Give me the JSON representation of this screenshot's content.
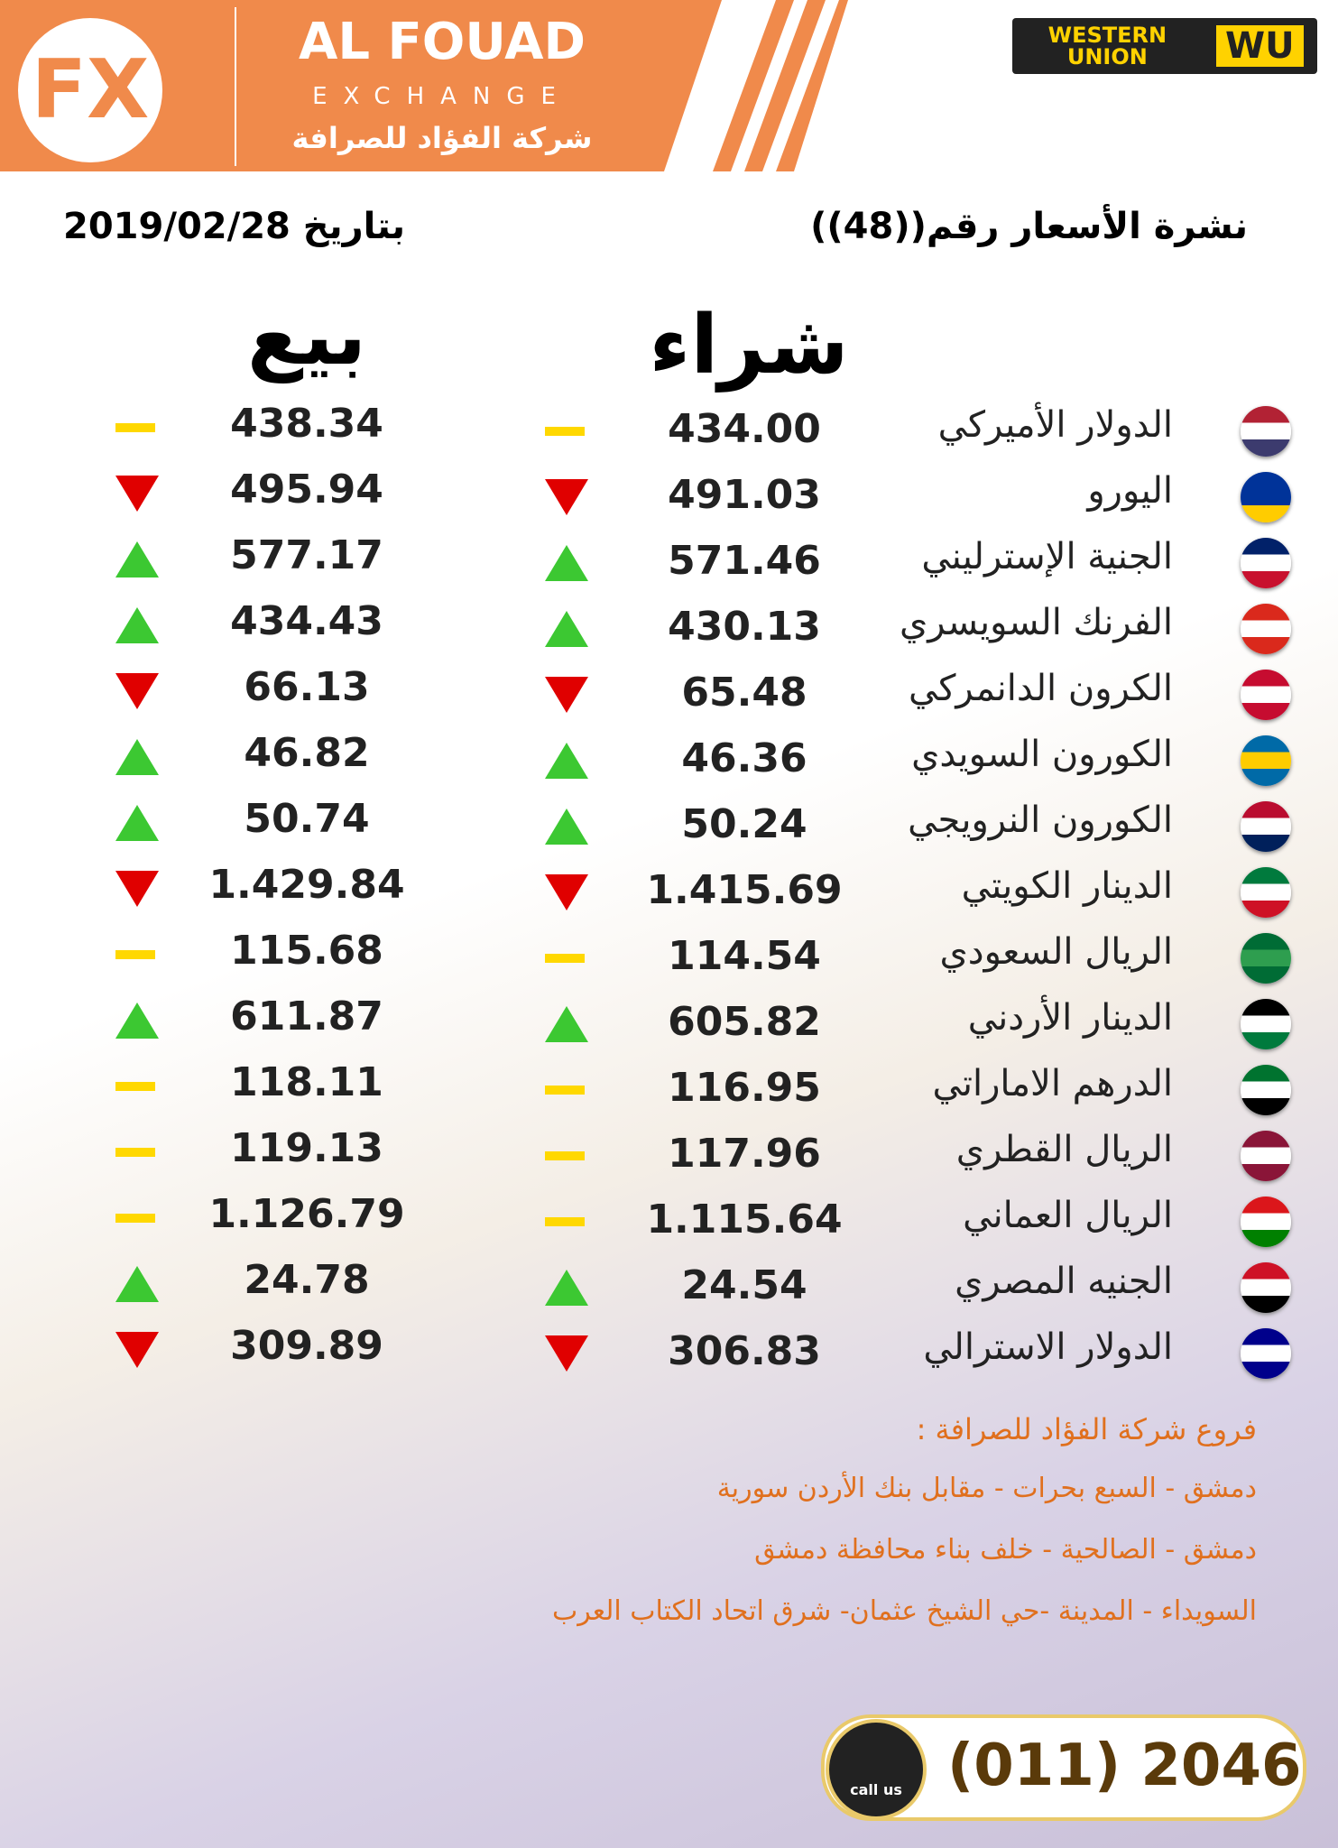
{
  "header": {
    "logo": "FX",
    "title": "AL FOUAD",
    "subtitle": "EXCHANGE",
    "arabic_name": "شركة الفؤاد للصرافة",
    "partner": "WESTERN UNION",
    "partner_mark": "WU"
  },
  "bulletin": {
    "number": "نشرة الأسعار رقم((48))",
    "date": "بتاريخ 2019/02/28"
  },
  "table": {
    "buy_header": "شراء",
    "sell_header": "بيع",
    "rows": [
      {
        "name": "الدولار الأميركي",
        "buy": "434.00",
        "sell": "438.34",
        "trend": "flat",
        "flag": [
          "#b22234",
          "#ffffff",
          "#3c3b6e"
        ]
      },
      {
        "name": "اليورو",
        "buy": "491.03",
        "sell": "495.94",
        "trend": "down",
        "flag": [
          "#003399",
          "#003399",
          "#ffcc00"
        ]
      },
      {
        "name": "الجنية الإسترليني",
        "buy": "571.46",
        "sell": "577.17",
        "trend": "up",
        "flag": [
          "#012169",
          "#ffffff",
          "#c8102e"
        ]
      },
      {
        "name": "الفرنك السويسري",
        "buy": "430.13",
        "sell": "434.43",
        "trend": "up",
        "flag": [
          "#da291c",
          "#ffffff",
          "#da291c"
        ]
      },
      {
        "name": "الكرون الدانمركي",
        "buy": "65.48",
        "sell": "66.13",
        "trend": "down",
        "flag": [
          "#c60c30",
          "#ffffff",
          "#c60c30"
        ]
      },
      {
        "name": "الكورون السويدي",
        "buy": "46.36",
        "sell": "46.82",
        "trend": "up",
        "flag": [
          "#006aa7",
          "#fecc00",
          "#006aa7"
        ]
      },
      {
        "name": "الكورون النرويجي",
        "buy": "50.24",
        "sell": "50.74",
        "trend": "up",
        "flag": [
          "#ba0c2f",
          "#ffffff",
          "#00205b"
        ]
      },
      {
        "name": "الدينار الكويتي",
        "buy": "1.415.69",
        "sell": "1.429.84",
        "trend": "down",
        "flag": [
          "#007a3d",
          "#ffffff",
          "#ce1126"
        ]
      },
      {
        "name": "الريال السعودي",
        "buy": "114.54",
        "sell": "115.68",
        "trend": "flat",
        "flag": [
          "#006c35",
          "#2e9e4f",
          "#006c35"
        ]
      },
      {
        "name": "الدينار الأردني",
        "buy": "605.82",
        "sell": "611.87",
        "trend": "up",
        "flag": [
          "#000000",
          "#ffffff",
          "#007a3d"
        ]
      },
      {
        "name": "الدرهم الاماراتي",
        "buy": "116.95",
        "sell": "118.11",
        "trend": "flat",
        "flag": [
          "#00732f",
          "#ffffff",
          "#000000"
        ]
      },
      {
        "name": "الريال القطري",
        "buy": "117.96",
        "sell": "119.13",
        "trend": "flat",
        "flag": [
          "#8a1538",
          "#ffffff",
          "#8a1538"
        ]
      },
      {
        "name": "الريال العماني",
        "buy": "1.115.64",
        "sell": "1.126.79",
        "trend": "flat",
        "flag": [
          "#db161b",
          "#ffffff",
          "#008000"
        ]
      },
      {
        "name": "الجنيه المصري",
        "buy": "24.54",
        "sell": "24.78",
        "trend": "up",
        "flag": [
          "#ce1126",
          "#ffffff",
          "#000000"
        ]
      },
      {
        "name": "الدولار الاسترالي",
        "buy": "306.83",
        "sell": "309.89",
        "trend": "down",
        "flag": [
          "#00008b",
          "#ffffff",
          "#00008b"
        ]
      }
    ]
  },
  "branches": {
    "title": "فروع شركة الفؤاد للصرافة :",
    "lines": [
      "دمشق - السبع بحرات - مقابل بنك الأردن سورية",
      "دمشق - الصالحية - خلف بناء محافظة دمشق",
      "السويداء - المدينة -حي الشيخ عثمان- شرق اتحاد  الكتاب العرب"
    ]
  },
  "contact": {
    "button": "call us",
    "phone": "(011) 2046"
  }
}
